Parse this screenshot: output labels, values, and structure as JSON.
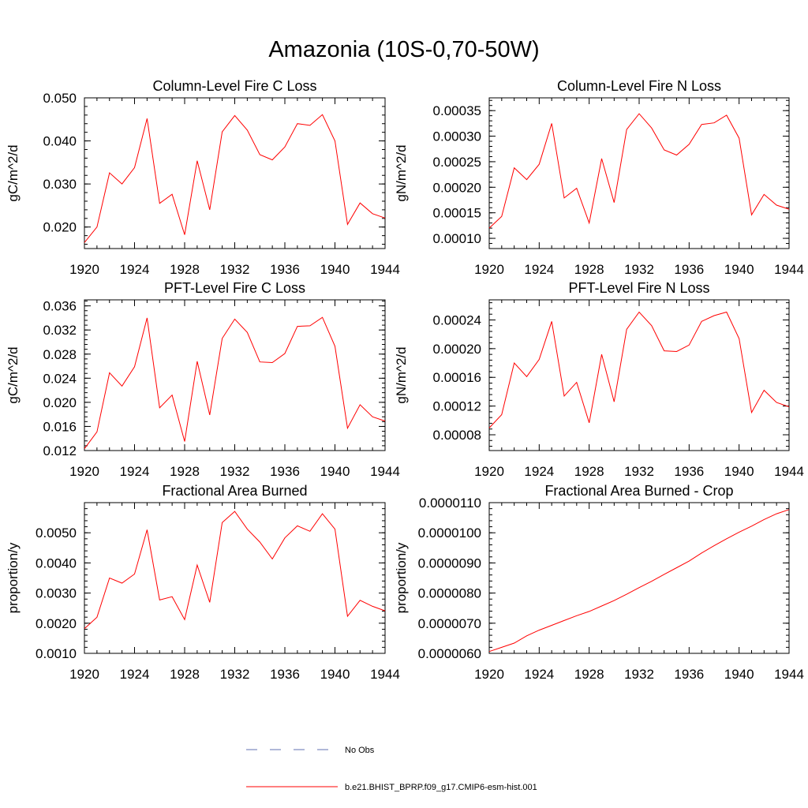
{
  "title": "Amazonia (10S-0,70-50W)",
  "chart_data": [
    {
      "type": "line",
      "title": "Column-Level Fire C Loss",
      "ylabel": "gC/m^2/d",
      "xlim": [
        1920,
        1944
      ],
      "ylim": [
        0.015,
        0.05
      ],
      "xticks": [
        1920,
        1924,
        1928,
        1932,
        1936,
        1940,
        1944
      ],
      "xtick_labels": [
        "1920",
        "1924",
        "1928",
        "1932",
        "1936",
        "1940",
        "1944"
      ],
      "yticks": [
        0.02,
        0.03,
        0.04,
        0.05
      ],
      "ytick_labels": [
        "0.020",
        "0.030",
        "0.040",
        "0.050"
      ],
      "x": [
        1920,
        1921,
        1922,
        1923,
        1924,
        1925,
        1926,
        1927,
        1928,
        1929,
        1930,
        1931,
        1932,
        1933,
        1934,
        1935,
        1936,
        1937,
        1938,
        1939,
        1940,
        1941,
        1942,
        1943,
        1944
      ],
      "series": [
        {
          "color": "#ff0000",
          "values": [
            0.0164,
            0.02,
            0.0326,
            0.03,
            0.0338,
            0.0452,
            0.0255,
            0.0276,
            0.0182,
            0.0354,
            0.024,
            0.0421,
            0.0459,
            0.0425,
            0.0368,
            0.0356,
            0.0386,
            0.044,
            0.0436,
            0.0461,
            0.04,
            0.0206,
            0.0256,
            0.0231,
            0.0221
          ]
        }
      ]
    },
    {
      "type": "line",
      "title": "Column-Level Fire N Loss",
      "ylabel": "gN/m^2/d",
      "xlim": [
        1920,
        1944
      ],
      "ylim": [
        8e-05,
        0.000375
      ],
      "xticks": [
        1920,
        1924,
        1928,
        1932,
        1936,
        1940,
        1944
      ],
      "xtick_labels": [
        "1920",
        "1924",
        "1928",
        "1932",
        "1936",
        "1940",
        "1944"
      ],
      "yticks": [
        0.0001,
        0.00015,
        0.0002,
        0.00025,
        0.0003,
        0.00035
      ],
      "ytick_labels": [
        "0.00010",
        "0.00015",
        "0.00020",
        "0.00025",
        "0.00030",
        "0.00035"
      ],
      "x": [
        1920,
        1921,
        1922,
        1923,
        1924,
        1925,
        1926,
        1927,
        1928,
        1929,
        1930,
        1931,
        1932,
        1933,
        1934,
        1935,
        1936,
        1937,
        1938,
        1939,
        1940,
        1941,
        1942,
        1943,
        1944
      ],
      "series": [
        {
          "color": "#ff0000",
          "values": [
            0.00012,
            0.000143,
            0.000238,
            0.000215,
            0.000245,
            0.000325,
            0.000179,
            0.000198,
            0.00013,
            0.000256,
            0.00017,
            0.000313,
            0.000344,
            0.000316,
            0.000273,
            0.000263,
            0.000284,
            0.000323,
            0.000326,
            0.000341,
            0.000296,
            0.000146,
            0.000186,
            0.000165,
            0.000157
          ]
        }
      ]
    },
    {
      "type": "line",
      "title": "PFT-Level Fire C Loss",
      "ylabel": "gC/m^2/d",
      "xlim": [
        1920,
        1944
      ],
      "ylim": [
        0.012,
        0.037
      ],
      "xticks": [
        1920,
        1924,
        1928,
        1932,
        1936,
        1940,
        1944
      ],
      "xtick_labels": [
        "1920",
        "1924",
        "1928",
        "1932",
        "1936",
        "1940",
        "1944"
      ],
      "yticks": [
        0.012,
        0.016,
        0.02,
        0.024,
        0.028,
        0.032,
        0.036
      ],
      "ytick_labels": [
        "0.012",
        "0.016",
        "0.020",
        "0.024",
        "0.028",
        "0.032",
        "0.036"
      ],
      "x": [
        1920,
        1921,
        1922,
        1923,
        1924,
        1925,
        1926,
        1927,
        1928,
        1929,
        1930,
        1931,
        1932,
        1933,
        1934,
        1935,
        1936,
        1937,
        1938,
        1939,
        1940,
        1941,
        1942,
        1943,
        1944
      ],
      "series": [
        {
          "color": "#ff0000",
          "values": [
            0.0123,
            0.0151,
            0.0249,
            0.0227,
            0.0259,
            0.034,
            0.0191,
            0.0212,
            0.0135,
            0.0268,
            0.0179,
            0.0306,
            0.0338,
            0.0316,
            0.0267,
            0.0266,
            0.0281,
            0.0326,
            0.0327,
            0.0341,
            0.0293,
            0.0157,
            0.0196,
            0.0176,
            0.0169
          ]
        }
      ]
    },
    {
      "type": "line",
      "title": "PFT-Level Fire N Loss",
      "ylabel": "gN/m^2/d",
      "xlim": [
        1920,
        1944
      ],
      "ylim": [
        5.8e-05,
        0.000268
      ],
      "xticks": [
        1920,
        1924,
        1928,
        1932,
        1936,
        1940,
        1944
      ],
      "xtick_labels": [
        "1920",
        "1924",
        "1928",
        "1932",
        "1936",
        "1940",
        "1944"
      ],
      "yticks": [
        8e-05,
        0.00012,
        0.00016,
        0.0002,
        0.00024
      ],
      "ytick_labels": [
        "0.00008",
        "0.00012",
        "0.00016",
        "0.00020",
        "0.00024"
      ],
      "x": [
        1920,
        1921,
        1922,
        1923,
        1924,
        1925,
        1926,
        1927,
        1928,
        1929,
        1930,
        1931,
        1932,
        1933,
        1934,
        1935,
        1936,
        1937,
        1938,
        1939,
        1940,
        1941,
        1942,
        1943,
        1944
      ],
      "series": [
        {
          "color": "#ff0000",
          "values": [
            8.95e-05,
            0.000108,
            0.00018,
            0.000161,
            0.000185,
            0.000238,
            0.000134,
            0.000153,
            9.67e-05,
            0.000192,
            0.000126,
            0.000227,
            0.000251,
            0.000232,
            0.000197,
            0.000196,
            0.000205,
            0.000238,
            0.000246,
            0.000251,
            0.000214,
            0.000111,
            0.000142,
            0.000125,
            0.000119
          ]
        }
      ]
    },
    {
      "type": "line",
      "title": "Fractional Area Burned",
      "ylabel": "proportion/y",
      "xlim": [
        1920,
        1944
      ],
      "ylim": [
        0.001,
        0.006
      ],
      "xticks": [
        1920,
        1924,
        1928,
        1932,
        1936,
        1940,
        1944
      ],
      "xtick_labels": [
        "1920",
        "1924",
        "1928",
        "1932",
        "1936",
        "1940",
        "1944"
      ],
      "yticks": [
        0.001,
        0.002,
        0.003,
        0.004,
        0.005
      ],
      "ytick_labels": [
        "0.0010",
        "0.0020",
        "0.0030",
        "0.0040",
        "0.0050"
      ],
      "x": [
        1920,
        1921,
        1922,
        1923,
        1924,
        1925,
        1926,
        1927,
        1928,
        1929,
        1930,
        1931,
        1932,
        1933,
        1934,
        1935,
        1936,
        1937,
        1938,
        1939,
        1940,
        1941,
        1942,
        1943,
        1944
      ],
      "series": [
        {
          "color": "#ff0000",
          "values": [
            0.00182,
            0.0022,
            0.0035,
            0.00333,
            0.00363,
            0.0051,
            0.00277,
            0.00288,
            0.00212,
            0.00393,
            0.00269,
            0.00534,
            0.00571,
            0.00512,
            0.00469,
            0.00413,
            0.00483,
            0.00523,
            0.00505,
            0.00563,
            0.00512,
            0.00223,
            0.00276,
            0.00256,
            0.00241
          ]
        }
      ]
    },
    {
      "type": "line",
      "title": "Fractional Area Burned - Crop",
      "ylabel": "proportion/y",
      "xlim": [
        1920,
        1944
      ],
      "ylim": [
        6e-06,
        1.1e-05
      ],
      "xticks": [
        1920,
        1924,
        1928,
        1932,
        1936,
        1940,
        1944
      ],
      "xtick_labels": [
        "1920",
        "1924",
        "1928",
        "1932",
        "1936",
        "1940",
        "1944"
      ],
      "yticks": [
        6e-06,
        7e-06,
        8e-06,
        9e-06,
        1e-05,
        1.1e-05
      ],
      "ytick_labels": [
        "0.0000060",
        "0.0000070",
        "0.0000080",
        "0.0000090",
        "0.0000100",
        "0.0000110"
      ],
      "x": [
        1920,
        1921,
        1922,
        1923,
        1924,
        1925,
        1926,
        1927,
        1928,
        1929,
        1930,
        1931,
        1932,
        1933,
        1934,
        1935,
        1936,
        1937,
        1938,
        1939,
        1940,
        1941,
        1942,
        1943,
        1944
      ],
      "series": [
        {
          "color": "#ff0000",
          "values": [
            6.06e-06,
            6.2e-06,
            6.34e-06,
            6.58e-06,
            6.77e-06,
            6.93e-06,
            7.09e-06,
            7.25e-06,
            7.39e-06,
            7.57e-06,
            7.75e-06,
            7.96e-06,
            8.18e-06,
            8.39e-06,
            8.62e-06,
            8.84e-06,
            9.06e-06,
            9.33e-06,
            9.57e-06,
            9.8e-06,
            1.002e-05,
            1.022e-05,
            1.044e-05,
            1.063e-05,
            1.077e-05
          ]
        }
      ]
    }
  ],
  "legend": [
    {
      "label": "No Obs",
      "color": "#6070b0",
      "style": "dashed"
    },
    {
      "label": "b.e21.BHIST_BPRP.f09_g17.CMIP6-esm-hist.001",
      "color": "#ff0000",
      "style": "solid"
    }
  ]
}
